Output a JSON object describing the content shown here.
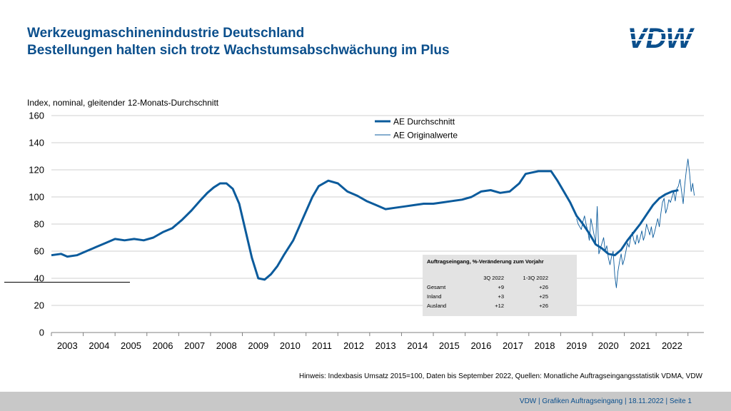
{
  "header": {
    "title": "Werkzeugmaschinenindustrie Deutschland",
    "subtitle": "Bestellungen halten sich trotz Wachstumsabschwächung im Plus",
    "logo_text": "VDW"
  },
  "colors": {
    "brand": "#0b4f8c",
    "line": "#0b5b9c",
    "grid": "#bfbfbf",
    "footer_bg": "#c8c8c8",
    "table_bg": "#e3e3e3"
  },
  "chart_data": {
    "type": "line",
    "title": "",
    "ylabel": "Index, nominal, gleitender 12-Monats-Durchschnitt",
    "xlabel": "",
    "ylim": [
      0,
      160
    ],
    "xlim": [
      2002.5,
      2023.0
    ],
    "yticks": [
      0,
      20,
      40,
      60,
      80,
      100,
      120,
      140,
      160
    ],
    "xtick_labels": [
      "2003",
      "2004",
      "2005",
      "2006",
      "2007",
      "2008",
      "2009",
      "2010",
      "2011",
      "2012",
      "2013",
      "2014",
      "2015",
      "2016",
      "2017",
      "2018",
      "2019",
      "2020",
      "2021",
      "2022"
    ],
    "legend": {
      "position": "top-center"
    },
    "series": [
      {
        "name": "AE Durchschnitt",
        "style": "thick",
        "x": [
          2002.5,
          2002.8,
          2003.0,
          2003.3,
          2003.6,
          2003.9,
          2004.2,
          2004.5,
          2004.8,
          2005.1,
          2005.4,
          2005.7,
          2006.0,
          2006.3,
          2006.6,
          2006.9,
          2007.2,
          2007.4,
          2007.6,
          2007.8,
          2008.0,
          2008.2,
          2008.4,
          2008.6,
          2008.8,
          2009.0,
          2009.2,
          2009.4,
          2009.6,
          2009.8,
          2010.1,
          2010.4,
          2010.7,
          2010.9,
          2011.2,
          2011.5,
          2011.8,
          2012.1,
          2012.4,
          2012.7,
          2013.0,
          2013.3,
          2013.6,
          2013.9,
          2014.2,
          2014.5,
          2014.8,
          2015.1,
          2015.4,
          2015.7,
          2016.0,
          2016.3,
          2016.6,
          2016.9,
          2017.2,
          2017.4,
          2017.6,
          2017.8,
          2018.0,
          2018.2,
          2018.4,
          2018.6,
          2018.8,
          2019.0,
          2019.2,
          2019.4,
          2019.6,
          2019.8,
          2020.0,
          2020.2,
          2020.4,
          2020.6,
          2020.8,
          2021.0,
          2021.2,
          2021.4,
          2021.6,
          2021.8,
          2022.0,
          2022.2
        ],
        "values": [
          57,
          58,
          56,
          57,
          60,
          63,
          66,
          69,
          68,
          69,
          68,
          70,
          74,
          77,
          83,
          90,
          98,
          103,
          107,
          110,
          110,
          106,
          95,
          75,
          55,
          40,
          39,
          43,
          49,
          57,
          68,
          84,
          100,
          108,
          112,
          110,
          104,
          101,
          97,
          94,
          91,
          92,
          93,
          94,
          95,
          95,
          96,
          97,
          98,
          100,
          104,
          105,
          103,
          104,
          110,
          117,
          118,
          119,
          119,
          119,
          112,
          104,
          96,
          86,
          80,
          73,
          65,
          62,
          58,
          57,
          61,
          68,
          74,
          80,
          87,
          94,
          99,
          102,
          104,
          105
        ]
      },
      {
        "name": "AE Originalwerte",
        "style": "thin",
        "x": [
          2019.0,
          2019.05,
          2019.1,
          2019.15,
          2019.2,
          2019.25,
          2019.3,
          2019.35,
          2019.4,
          2019.45,
          2019.5,
          2019.55,
          2019.6,
          2019.65,
          2019.7,
          2019.75,
          2019.8,
          2019.85,
          2019.9,
          2019.95,
          2020.0,
          2020.05,
          2020.1,
          2020.15,
          2020.2,
          2020.25,
          2020.3,
          2020.35,
          2020.4,
          2020.45,
          2020.5,
          2020.55,
          2020.6,
          2020.65,
          2020.7,
          2020.75,
          2020.8,
          2020.85,
          2020.9,
          2020.95,
          2021.0,
          2021.05,
          2021.1,
          2021.15,
          2021.2,
          2021.25,
          2021.3,
          2021.35,
          2021.4,
          2021.45,
          2021.5,
          2021.55,
          2021.6,
          2021.65,
          2021.7,
          2021.75,
          2021.8,
          2021.85,
          2021.9,
          2021.95,
          2022.0,
          2022.05,
          2022.1,
          2022.15,
          2022.2,
          2022.25,
          2022.3,
          2022.35,
          2022.4,
          2022.45,
          2022.5,
          2022.55,
          2022.6,
          2022.65,
          2022.7
        ],
        "values": [
          84,
          80,
          78,
          76,
          82,
          86,
          80,
          75,
          68,
          84,
          78,
          72,
          66,
          93,
          58,
          62,
          66,
          70,
          60,
          64,
          55,
          50,
          56,
          60,
          42,
          33,
          45,
          52,
          58,
          50,
          54,
          60,
          66,
          63,
          70,
          74,
          68,
          65,
          72,
          66,
          70,
          75,
          68,
          72,
          80,
          76,
          72,
          78,
          70,
          74,
          79,
          84,
          78,
          88,
          96,
          99,
          88,
          92,
          98,
          96,
          100,
          104,
          97,
          106,
          108,
          113,
          104,
          95,
          109,
          120,
          128,
          118,
          104,
          110,
          101
        ]
      }
    ],
    "table": {
      "title": "Auftragseingang, %-Veränderung zum Vorjahr",
      "headers": [
        "",
        "3Q 2022",
        "1-3Q 2022"
      ],
      "rows": [
        [
          "Gesamt",
          "+9",
          "+26"
        ],
        [
          "Inland",
          "+3",
          "+25"
        ],
        [
          "Ausland",
          "+12",
          "+26"
        ]
      ]
    }
  },
  "footnote": "Hinweis: Indexbasis Umsatz 2015=100, Daten bis September 2022, Quellen: Monatliche Auftragseingangsstatistik VDMA, VDW",
  "footer": {
    "text": "VDW  |  Grafiken Auftragseingang  |   18.11.2022    |  Seite  1"
  }
}
